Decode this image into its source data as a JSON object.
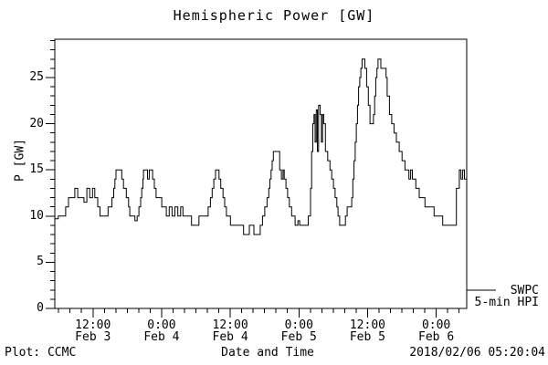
{
  "title": "Hemispheric Power [GW]",
  "ylabel": "P [GW]",
  "xlabel": "Date and Time",
  "footer": {
    "left": "Plot: CCMC",
    "center": "Date and Time",
    "right": "2018/02/06 05:20:04"
  },
  "legend": {
    "line1": "SWPC",
    "line2": "5-min HPI"
  },
  "colors": {
    "foreground": "#000000",
    "background": "#ffffff"
  },
  "chart_data": {
    "type": "line",
    "style": "step-after",
    "title": "Hemispheric Power [GW]",
    "xlabel": "Date and Time",
    "ylabel": "P [GW]",
    "grid": false,
    "legend_position": "outside-right-bottom",
    "legend_entries": [
      "SWPC",
      "5-min HPI"
    ],
    "ylim": [
      0,
      29.15
    ],
    "y_major_ticks": [
      0,
      5,
      10,
      15,
      20,
      25
    ],
    "y_minor_step_gw": 1,
    "x_range_hours": 72,
    "x_axis_start": "Feb 3 ~05:20",
    "x_axis_end": "Feb 6 ~05:20",
    "x_minor_step_hours": 2,
    "x_minor_offset_hours": 0.667,
    "x_major_ticks": [
      {
        "t": 6.667,
        "time": "12:00",
        "date": "Feb 3"
      },
      {
        "t": 18.667,
        "time": "0:00",
        "date": "Feb 4"
      },
      {
        "t": 30.667,
        "time": "12:00",
        "date": "Feb 4"
      },
      {
        "t": 42.667,
        "time": "0:00",
        "date": "Feb 5"
      },
      {
        "t": 54.667,
        "time": "12:00",
        "date": "Feb 5"
      },
      {
        "t": 66.667,
        "time": "0:00",
        "date": "Feb 6"
      }
    ],
    "series": [
      {
        "name": "SWPC 5-min HPI",
        "units": "GW",
        "points_t_hours_vs_gw": [
          [
            0,
            9.7
          ],
          [
            0.6,
            10
          ],
          [
            1.9,
            11
          ],
          [
            2.4,
            12
          ],
          [
            3.5,
            13
          ],
          [
            4.0,
            12
          ],
          [
            5.1,
            11.5
          ],
          [
            5.6,
            13
          ],
          [
            6.1,
            12
          ],
          [
            6.6,
            13
          ],
          [
            7.0,
            12
          ],
          [
            7.5,
            11
          ],
          [
            7.9,
            10
          ],
          [
            9.3,
            11
          ],
          [
            10.0,
            12
          ],
          [
            10.3,
            13
          ],
          [
            10.5,
            14
          ],
          [
            10.7,
            15
          ],
          [
            11.7,
            14
          ],
          [
            12.0,
            13
          ],
          [
            12.5,
            12
          ],
          [
            12.9,
            11
          ],
          [
            13.1,
            10
          ],
          [
            14.0,
            9.5
          ],
          [
            14.4,
            10
          ],
          [
            14.7,
            11
          ],
          [
            15.0,
            12
          ],
          [
            15.2,
            13
          ],
          [
            15.4,
            14
          ],
          [
            15.5,
            15
          ],
          [
            16.2,
            14
          ],
          [
            16.5,
            15
          ],
          [
            17.1,
            14
          ],
          [
            17.4,
            13
          ],
          [
            17.7,
            12
          ],
          [
            18.7,
            11
          ],
          [
            19.5,
            10
          ],
          [
            20.0,
            11
          ],
          [
            20.5,
            10
          ],
          [
            21.0,
            11
          ],
          [
            21.5,
            10
          ],
          [
            22.0,
            11
          ],
          [
            22.4,
            10
          ],
          [
            23.9,
            9
          ],
          [
            25.2,
            10
          ],
          [
            26.8,
            11
          ],
          [
            27.2,
            12
          ],
          [
            27.5,
            13
          ],
          [
            27.8,
            14
          ],
          [
            28.1,
            15
          ],
          [
            28.7,
            14
          ],
          [
            29.0,
            13
          ],
          [
            29.4,
            12
          ],
          [
            29.7,
            11
          ],
          [
            30.0,
            10
          ],
          [
            30.7,
            9
          ],
          [
            33.0,
            8
          ],
          [
            34.0,
            9
          ],
          [
            34.8,
            8
          ],
          [
            35.9,
            9
          ],
          [
            36.3,
            10
          ],
          [
            36.7,
            11
          ],
          [
            37.1,
            12
          ],
          [
            37.4,
            13
          ],
          [
            37.6,
            14
          ],
          [
            37.8,
            15
          ],
          [
            38.0,
            16
          ],
          [
            38.2,
            17
          ],
          [
            39.3,
            15
          ],
          [
            39.6,
            14
          ],
          [
            39.9,
            15
          ],
          [
            40.1,
            14
          ],
          [
            40.4,
            13
          ],
          [
            40.7,
            12
          ],
          [
            41.0,
            11
          ],
          [
            41.4,
            10
          ],
          [
            42.0,
            9
          ],
          [
            42.5,
            9.5
          ],
          [
            42.8,
            9
          ],
          [
            44.3,
            10
          ],
          [
            44.7,
            13
          ],
          [
            44.9,
            17
          ],
          [
            45.1,
            20
          ],
          [
            45.3,
            21
          ],
          [
            45.5,
            18
          ],
          [
            45.7,
            21.5
          ],
          [
            45.9,
            17
          ],
          [
            46.1,
            22
          ],
          [
            46.4,
            21
          ],
          [
            46.6,
            18
          ],
          [
            46.8,
            21
          ],
          [
            47.0,
            20
          ],
          [
            47.3,
            17
          ],
          [
            47.7,
            16
          ],
          [
            48.1,
            15
          ],
          [
            48.4,
            14
          ],
          [
            48.7,
            13
          ],
          [
            49.0,
            12
          ],
          [
            49.3,
            11
          ],
          [
            49.5,
            10
          ],
          [
            49.8,
            9
          ],
          [
            50.8,
            10
          ],
          [
            51.1,
            11
          ],
          [
            51.9,
            12
          ],
          [
            52.1,
            14
          ],
          [
            52.3,
            16
          ],
          [
            52.5,
            18
          ],
          [
            52.7,
            20
          ],
          [
            52.9,
            22
          ],
          [
            53.1,
            24
          ],
          [
            53.3,
            25
          ],
          [
            53.5,
            26
          ],
          [
            53.7,
            27
          ],
          [
            54.2,
            26
          ],
          [
            54.5,
            24
          ],
          [
            54.8,
            22
          ],
          [
            55.1,
            20
          ],
          [
            55.7,
            21
          ],
          [
            55.9,
            23
          ],
          [
            56.1,
            25
          ],
          [
            56.3,
            26
          ],
          [
            56.5,
            27
          ],
          [
            57.0,
            26
          ],
          [
            57.9,
            25
          ],
          [
            58.1,
            23
          ],
          [
            58.5,
            21
          ],
          [
            58.9,
            20
          ],
          [
            59.3,
            19
          ],
          [
            59.7,
            18
          ],
          [
            60.2,
            17
          ],
          [
            60.7,
            16
          ],
          [
            61.2,
            15
          ],
          [
            61.9,
            14
          ],
          [
            62.2,
            15
          ],
          [
            62.5,
            14
          ],
          [
            63.1,
            13
          ],
          [
            63.7,
            12
          ],
          [
            64.7,
            11
          ],
          [
            66.3,
            10
          ],
          [
            67.8,
            9
          ],
          [
            70.2,
            13
          ],
          [
            70.7,
            15
          ],
          [
            71.0,
            14
          ],
          [
            71.3,
            15
          ],
          [
            71.6,
            14
          ],
          [
            72,
            14
          ]
        ]
      }
    ]
  }
}
